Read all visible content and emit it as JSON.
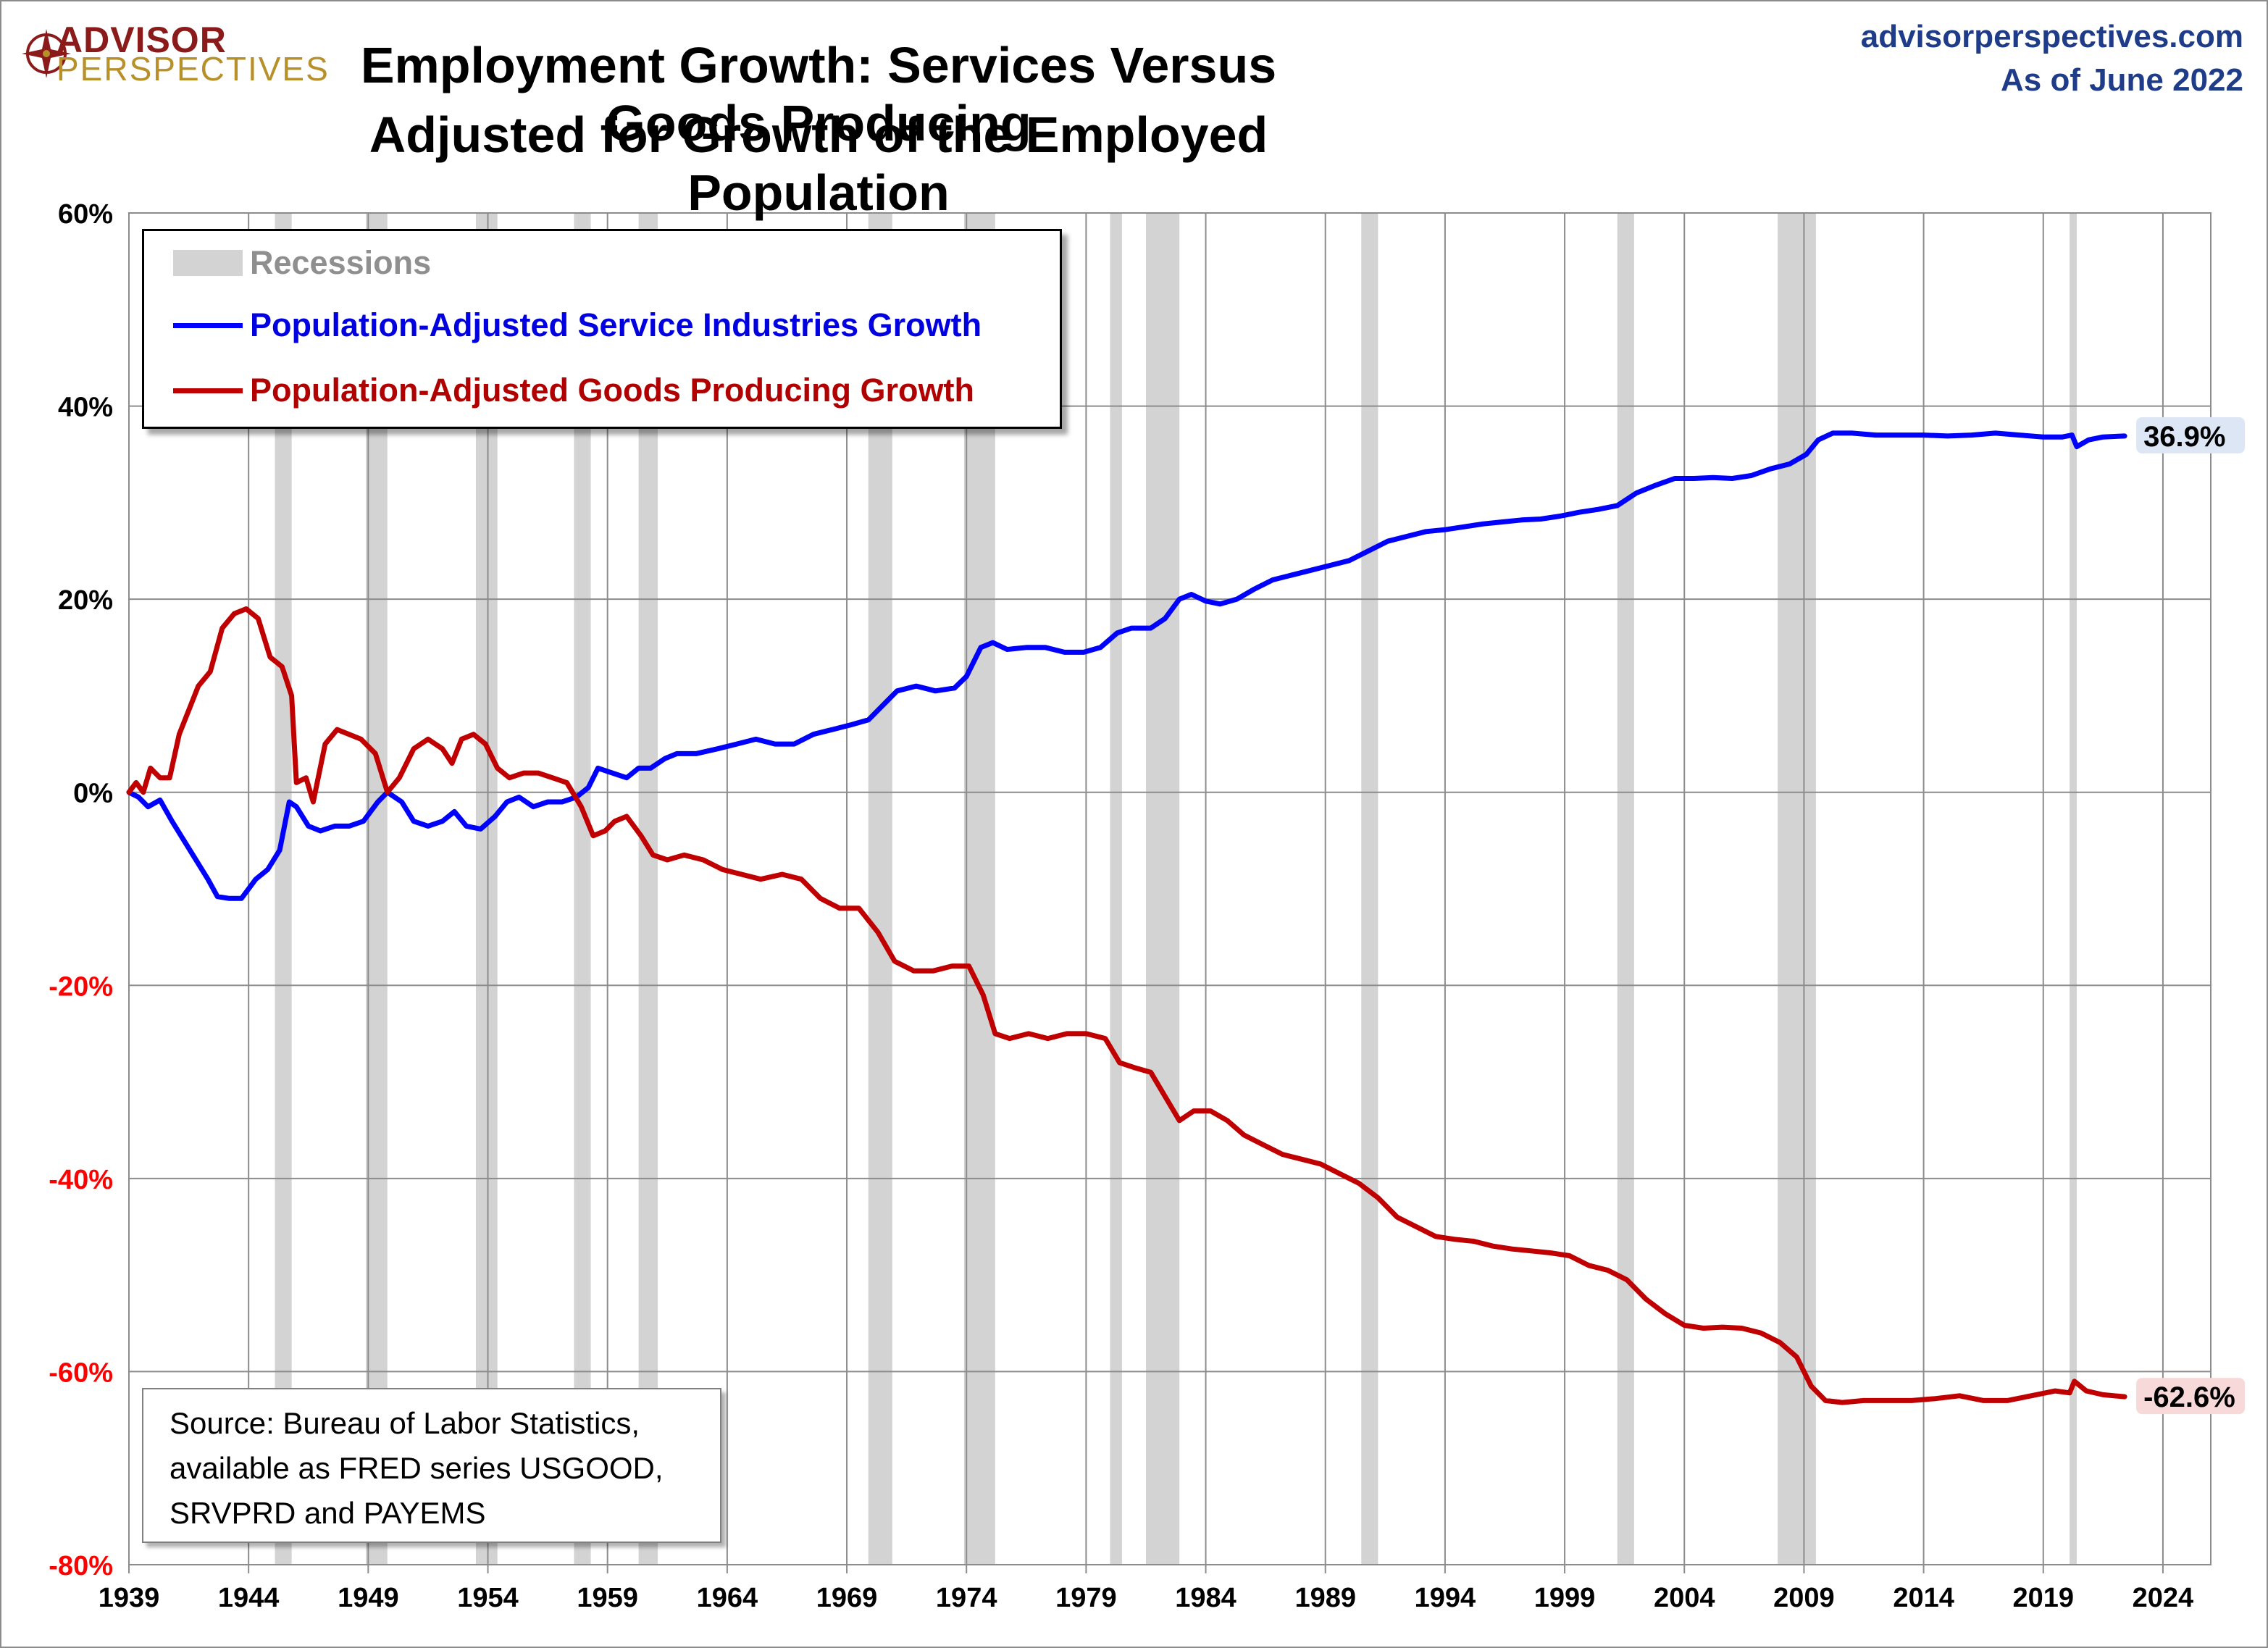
{
  "logo": {
    "line1": "ADVISOR",
    "line2": "PERSPECTIVES"
  },
  "header": {
    "title_line1": "Employment Growth: Services Versus Goods Producing",
    "title_line2": "Adjusted for Growth of the Employed Population",
    "site": "advisorperspectives.com",
    "as_of": "As of June 2022"
  },
  "legend": {
    "recessions": "Recessions",
    "services": "Population-Adjusted Service Industries Growth",
    "goods": "Population-Adjusted Goods Producing Growth"
  },
  "source": {
    "line1": "Source: Bureau of Labor Statistics,",
    "line2": "available as FRED series USGOOD,",
    "line3": "SRVPRD and PAYEMS"
  },
  "colors": {
    "services": "#0000ff",
    "goods": "#c00000",
    "recession": "#d3d3d3",
    "negative_tick": "#ff0000",
    "grid": "#8c8c8c"
  },
  "chart_data": {
    "type": "line",
    "title": "Employment Growth: Services Versus Goods Producing Adjusted for Growth of the Employed Population",
    "xlabel": "",
    "ylabel": "",
    "xlim": [
      1939,
      2026
    ],
    "ylim": [
      -80,
      60
    ],
    "x_ticks": [
      1939,
      1944,
      1949,
      1954,
      1959,
      1964,
      1969,
      1974,
      1979,
      1984,
      1989,
      1994,
      1999,
      2004,
      2009,
      2014,
      2019,
      2024
    ],
    "x_tick_labels": [
      "1939",
      "1944",
      "1949",
      "1954",
      "1959",
      "1964",
      "1969",
      "1974",
      "1979",
      "1984",
      "1989",
      "1994",
      "1999",
      "2004",
      "2009",
      "2014",
      "2019",
      "2024"
    ],
    "y_ticks": [
      60,
      40,
      20,
      0,
      -20,
      -40,
      -60,
      -80
    ],
    "y_tick_labels": [
      "60%",
      "40%",
      "20%",
      "0%",
      "-20%",
      "-40%",
      "-60%",
      "-80%"
    ],
    "grid": true,
    "legend_position": "top-left",
    "recessions": [
      [
        1945.1,
        1945.8
      ],
      [
        1948.9,
        1949.8
      ],
      [
        1953.5,
        1954.4
      ],
      [
        1957.6,
        1958.3
      ],
      [
        1960.3,
        1961.1
      ],
      [
        1969.9,
        1970.9
      ],
      [
        1973.9,
        1975.2
      ],
      [
        1980.0,
        1980.5
      ],
      [
        1981.5,
        1982.9
      ],
      [
        1990.5,
        1991.2
      ],
      [
        2001.2,
        2001.9
      ],
      [
        2007.9,
        2009.5
      ],
      [
        2020.1,
        2020.4
      ]
    ],
    "series": [
      {
        "name": "Population-Adjusted Service Industries Growth",
        "color": "#0000ff",
        "end_label": "36.9%",
        "points": [
          [
            1939.0,
            0.0
          ],
          [
            1939.4,
            -0.5
          ],
          [
            1939.8,
            -1.5
          ],
          [
            1940.3,
            -0.8
          ],
          [
            1940.8,
            -3.0
          ],
          [
            1941.3,
            -5.0
          ],
          [
            1941.8,
            -7.0
          ],
          [
            1942.3,
            -9.0
          ],
          [
            1942.7,
            -10.8
          ],
          [
            1943.2,
            -11.0
          ],
          [
            1943.7,
            -11.0
          ],
          [
            1944.3,
            -9.0
          ],
          [
            1944.8,
            -8.0
          ],
          [
            1945.3,
            -6.0
          ],
          [
            1945.7,
            -1.0
          ],
          [
            1946.0,
            -1.5
          ],
          [
            1946.5,
            -3.5
          ],
          [
            1947.0,
            -4.0
          ],
          [
            1947.6,
            -3.5
          ],
          [
            1948.2,
            -3.5
          ],
          [
            1948.8,
            -3.0
          ],
          [
            1949.4,
            -1.0
          ],
          [
            1949.8,
            0.0
          ],
          [
            1950.4,
            -1.0
          ],
          [
            1950.9,
            -3.0
          ],
          [
            1951.5,
            -3.5
          ],
          [
            1952.1,
            -3.0
          ],
          [
            1952.6,
            -2.0
          ],
          [
            1953.1,
            -3.5
          ],
          [
            1953.7,
            -3.8
          ],
          [
            1954.3,
            -2.5
          ],
          [
            1954.8,
            -1.0
          ],
          [
            1955.3,
            -0.5
          ],
          [
            1955.9,
            -1.5
          ],
          [
            1956.5,
            -1.0
          ],
          [
            1957.1,
            -1.0
          ],
          [
            1957.7,
            -0.5
          ],
          [
            1958.2,
            0.5
          ],
          [
            1958.6,
            2.5
          ],
          [
            1959.2,
            2.0
          ],
          [
            1959.8,
            1.5
          ],
          [
            1960.3,
            2.5
          ],
          [
            1960.8,
            2.5
          ],
          [
            1961.4,
            3.5
          ],
          [
            1961.9,
            4.0
          ],
          [
            1962.7,
            4.0
          ],
          [
            1963.6,
            4.5
          ],
          [
            1964.4,
            5.0
          ],
          [
            1965.2,
            5.5
          ],
          [
            1966.0,
            5.0
          ],
          [
            1966.8,
            5.0
          ],
          [
            1967.6,
            6.0
          ],
          [
            1968.4,
            6.5
          ],
          [
            1969.2,
            7.0
          ],
          [
            1969.9,
            7.5
          ],
          [
            1970.5,
            9.0
          ],
          [
            1971.1,
            10.5
          ],
          [
            1971.9,
            11.0
          ],
          [
            1972.7,
            10.5
          ],
          [
            1973.5,
            10.8
          ],
          [
            1974.0,
            12.0
          ],
          [
            1974.6,
            15.0
          ],
          [
            1975.1,
            15.5
          ],
          [
            1975.7,
            14.8
          ],
          [
            1976.5,
            15.0
          ],
          [
            1977.3,
            15.0
          ],
          [
            1978.1,
            14.5
          ],
          [
            1978.9,
            14.5
          ],
          [
            1979.6,
            15.0
          ],
          [
            1980.3,
            16.5
          ],
          [
            1980.9,
            17.0
          ],
          [
            1981.7,
            17.0
          ],
          [
            1982.3,
            18.0
          ],
          [
            1982.9,
            20.0
          ],
          [
            1983.4,
            20.5
          ],
          [
            1984.0,
            19.8
          ],
          [
            1984.6,
            19.5
          ],
          [
            1985.3,
            20.0
          ],
          [
            1986.0,
            21.0
          ],
          [
            1986.8,
            22.0
          ],
          [
            1987.6,
            22.5
          ],
          [
            1988.4,
            23.0
          ],
          [
            1989.2,
            23.5
          ],
          [
            1990.0,
            24.0
          ],
          [
            1990.8,
            25.0
          ],
          [
            1991.6,
            26.0
          ],
          [
            1992.4,
            26.5
          ],
          [
            1993.2,
            27.0
          ],
          [
            1994.0,
            27.2
          ],
          [
            1994.8,
            27.5
          ],
          [
            1995.6,
            27.8
          ],
          [
            1996.4,
            28.0
          ],
          [
            1997.2,
            28.2
          ],
          [
            1998.0,
            28.3
          ],
          [
            1998.8,
            28.6
          ],
          [
            1999.6,
            29.0
          ],
          [
            2000.4,
            29.3
          ],
          [
            2001.2,
            29.7
          ],
          [
            2002.0,
            31.0
          ],
          [
            2002.8,
            31.8
          ],
          [
            2003.6,
            32.5
          ],
          [
            2004.4,
            32.5
          ],
          [
            2005.2,
            32.6
          ],
          [
            2006.0,
            32.5
          ],
          [
            2006.8,
            32.8
          ],
          [
            2007.6,
            33.5
          ],
          [
            2008.4,
            34.0
          ],
          [
            2009.1,
            35.0
          ],
          [
            2009.6,
            36.5
          ],
          [
            2010.2,
            37.2
          ],
          [
            2011.0,
            37.2
          ],
          [
            2012.0,
            37.0
          ],
          [
            2013.0,
            37.0
          ],
          [
            2014.0,
            37.0
          ],
          [
            2015.0,
            36.9
          ],
          [
            2016.0,
            37.0
          ],
          [
            2017.0,
            37.2
          ],
          [
            2018.0,
            37.0
          ],
          [
            2019.0,
            36.8
          ],
          [
            2019.8,
            36.8
          ],
          [
            2020.2,
            37.0
          ],
          [
            2020.4,
            35.8
          ],
          [
            2020.9,
            36.5
          ],
          [
            2021.5,
            36.8
          ],
          [
            2022.4,
            36.9
          ]
        ]
      },
      {
        "name": "Population-Adjusted Goods Producing Growth",
        "color": "#c00000",
        "end_label": "-62.6%",
        "points": [
          [
            1939.0,
            0.0
          ],
          [
            1939.3,
            1.0
          ],
          [
            1939.6,
            0.0
          ],
          [
            1939.9,
            2.5
          ],
          [
            1940.3,
            1.5
          ],
          [
            1940.7,
            1.5
          ],
          [
            1941.1,
            6.0
          ],
          [
            1941.5,
            8.5
          ],
          [
            1941.9,
            11.0
          ],
          [
            1942.4,
            12.5
          ],
          [
            1942.9,
            17.0
          ],
          [
            1943.4,
            18.5
          ],
          [
            1943.9,
            19.0
          ],
          [
            1944.4,
            18.0
          ],
          [
            1944.9,
            14.0
          ],
          [
            1945.4,
            13.0
          ],
          [
            1945.8,
            10.0
          ],
          [
            1946.0,
            1.0
          ],
          [
            1946.4,
            1.5
          ],
          [
            1946.7,
            -1.0
          ],
          [
            1947.2,
            5.0
          ],
          [
            1947.7,
            6.5
          ],
          [
            1948.2,
            6.0
          ],
          [
            1948.7,
            5.5
          ],
          [
            1949.3,
            4.0
          ],
          [
            1949.8,
            0.0
          ],
          [
            1950.3,
            1.5
          ],
          [
            1950.9,
            4.5
          ],
          [
            1951.5,
            5.5
          ],
          [
            1952.1,
            4.5
          ],
          [
            1952.5,
            3.0
          ],
          [
            1952.9,
            5.5
          ],
          [
            1953.4,
            6.0
          ],
          [
            1953.9,
            5.0
          ],
          [
            1954.4,
            2.5
          ],
          [
            1954.9,
            1.5
          ],
          [
            1955.5,
            2.0
          ],
          [
            1956.1,
            2.0
          ],
          [
            1956.7,
            1.5
          ],
          [
            1957.3,
            1.0
          ],
          [
            1957.9,
            -1.5
          ],
          [
            1958.4,
            -4.5
          ],
          [
            1958.9,
            -4.0
          ],
          [
            1959.3,
            -3.0
          ],
          [
            1959.8,
            -2.5
          ],
          [
            1960.4,
            -4.5
          ],
          [
            1960.9,
            -6.5
          ],
          [
            1961.5,
            -7.0
          ],
          [
            1962.2,
            -6.5
          ],
          [
            1963.0,
            -7.0
          ],
          [
            1963.8,
            -8.0
          ],
          [
            1964.6,
            -8.5
          ],
          [
            1965.4,
            -9.0
          ],
          [
            1966.3,
            -8.5
          ],
          [
            1967.1,
            -9.0
          ],
          [
            1967.9,
            -11.0
          ],
          [
            1968.7,
            -12.0
          ],
          [
            1969.5,
            -12.0
          ],
          [
            1970.3,
            -14.5
          ],
          [
            1971.0,
            -17.5
          ],
          [
            1971.8,
            -18.5
          ],
          [
            1972.6,
            -18.5
          ],
          [
            1973.4,
            -18.0
          ],
          [
            1974.1,
            -18.0
          ],
          [
            1974.7,
            -21.0
          ],
          [
            1975.2,
            -25.0
          ],
          [
            1975.8,
            -25.5
          ],
          [
            1976.6,
            -25.0
          ],
          [
            1977.4,
            -25.5
          ],
          [
            1978.2,
            -25.0
          ],
          [
            1979.0,
            -25.0
          ],
          [
            1979.8,
            -25.5
          ],
          [
            1980.4,
            -28.0
          ],
          [
            1981.0,
            -28.5
          ],
          [
            1981.7,
            -29.0
          ],
          [
            1982.3,
            -31.5
          ],
          [
            1982.9,
            -34.0
          ],
          [
            1983.5,
            -33.0
          ],
          [
            1984.2,
            -33.0
          ],
          [
            1984.9,
            -34.0
          ],
          [
            1985.6,
            -35.5
          ],
          [
            1986.4,
            -36.5
          ],
          [
            1987.2,
            -37.5
          ],
          [
            1988.0,
            -38.0
          ],
          [
            1988.8,
            -38.5
          ],
          [
            1989.6,
            -39.5
          ],
          [
            1990.4,
            -40.5
          ],
          [
            1991.2,
            -42.0
          ],
          [
            1992.0,
            -44.0
          ],
          [
            1992.8,
            -45.0
          ],
          [
            1993.6,
            -46.0
          ],
          [
            1994.4,
            -46.3
          ],
          [
            1995.2,
            -46.5
          ],
          [
            1996.0,
            -47.0
          ],
          [
            1996.8,
            -47.3
          ],
          [
            1997.6,
            -47.5
          ],
          [
            1998.4,
            -47.7
          ],
          [
            1999.2,
            -48.0
          ],
          [
            2000.0,
            -49.0
          ],
          [
            2000.8,
            -49.5
          ],
          [
            2001.6,
            -50.5
          ],
          [
            2002.4,
            -52.5
          ],
          [
            2003.2,
            -54.0
          ],
          [
            2004.0,
            -55.2
          ],
          [
            2004.8,
            -55.5
          ],
          [
            2005.6,
            -55.4
          ],
          [
            2006.4,
            -55.5
          ],
          [
            2007.2,
            -56.0
          ],
          [
            2008.0,
            -57.0
          ],
          [
            2008.7,
            -58.5
          ],
          [
            2009.3,
            -61.5
          ],
          [
            2009.9,
            -63.0
          ],
          [
            2010.6,
            -63.2
          ],
          [
            2011.5,
            -63.0
          ],
          [
            2012.5,
            -63.0
          ],
          [
            2013.5,
            -63.0
          ],
          [
            2014.5,
            -62.8
          ],
          [
            2015.5,
            -62.5
          ],
          [
            2016.5,
            -63.0
          ],
          [
            2017.5,
            -63.0
          ],
          [
            2018.5,
            -62.5
          ],
          [
            2019.5,
            -62.0
          ],
          [
            2020.1,
            -62.2
          ],
          [
            2020.3,
            -61.0
          ],
          [
            2020.8,
            -62.0
          ],
          [
            2021.5,
            -62.4
          ],
          [
            2022.4,
            -62.6
          ]
        ]
      }
    ]
  }
}
